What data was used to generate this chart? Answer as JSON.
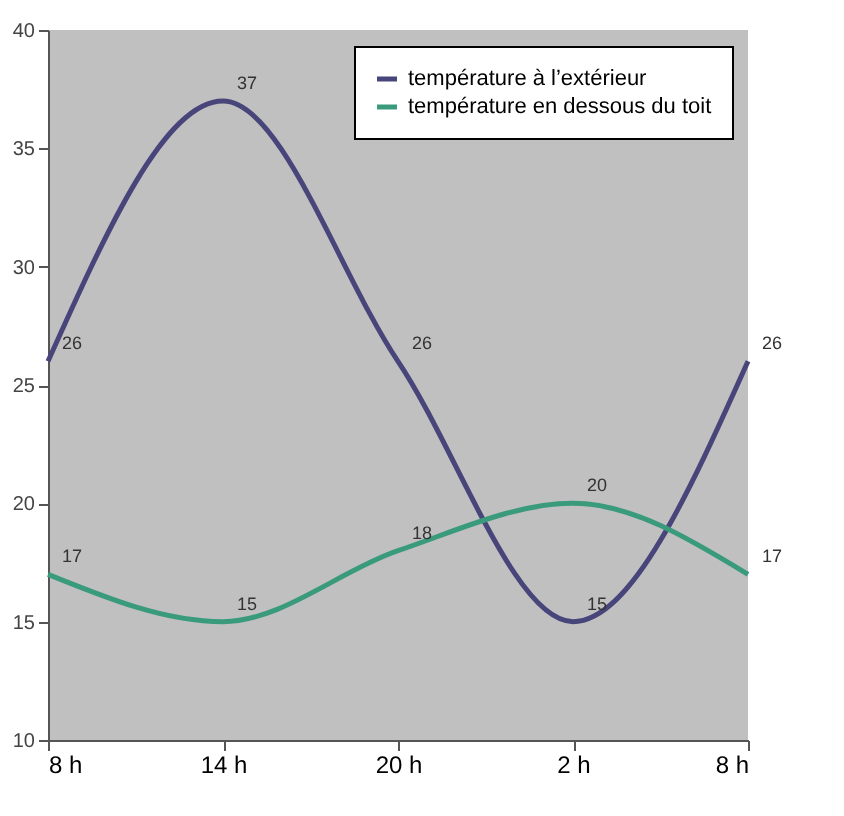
{
  "chart_data": {
    "type": "line",
    "categories": [
      "8 h",
      "14 h",
      "20 h",
      "2 h",
      "8 h"
    ],
    "series": [
      {
        "name": "température à l’extérieur",
        "color": "#47457a",
        "values": [
          26,
          37,
          26,
          15,
          26
        ]
      },
      {
        "name": "température en dessous du toit",
        "color": "#3a9a7c",
        "values": [
          17,
          15,
          18,
          20,
          17
        ]
      }
    ],
    "ylim": [
      10,
      40
    ],
    "yticks": [
      10,
      15,
      20,
      25,
      30,
      35,
      40
    ],
    "grid": false,
    "legend": "top right",
    "data_labels": true,
    "marker": "none",
    "line_style": "solid"
  }
}
